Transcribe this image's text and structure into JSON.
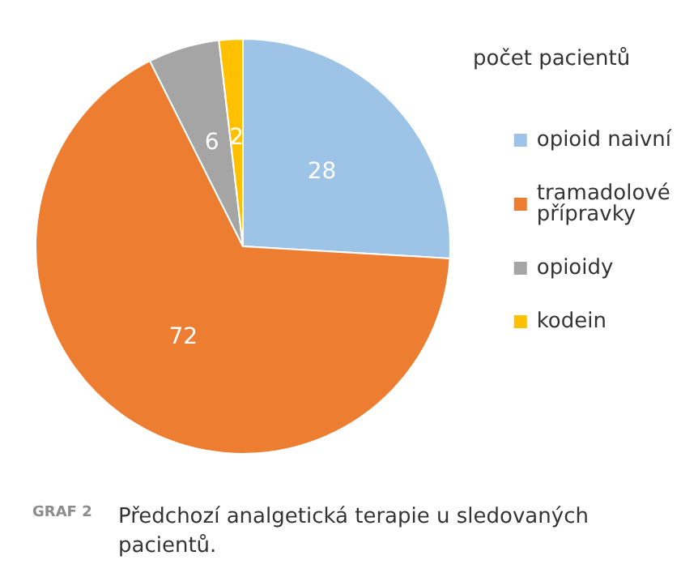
{
  "chart_data": {
    "type": "pie",
    "title": "Předchozí analgetická terapie u sledovaných pacientů.",
    "annotations": [
      "GRAF 2"
    ],
    "legend_title": "počet pacientů",
    "legend": "right",
    "data_labels": true,
    "categories": [
      "opioid naivní",
      "tramadolové přípravky",
      "opioidy",
      "kodein"
    ],
    "values": [
      28,
      72,
      6,
      2
    ],
    "colors": [
      "#9dc3e6",
      "#ed7d31",
      "#a5a5a5",
      "#ffc000"
    ]
  }
}
